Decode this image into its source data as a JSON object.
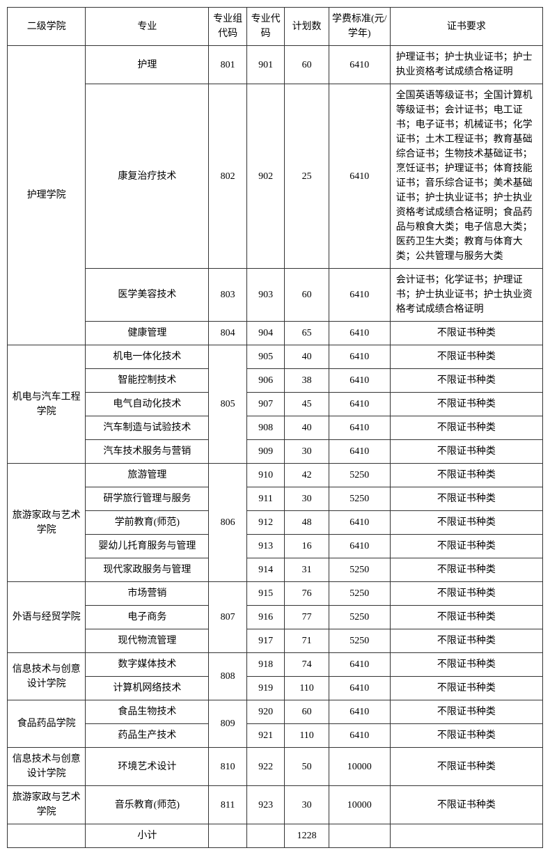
{
  "columns": {
    "college": "二级学院",
    "major": "专业",
    "group_code": "专业组代码",
    "major_code": "专业代码",
    "plan": "计划数",
    "fee": "学费标准(元/学年)",
    "cert": "证书要求"
  },
  "rows": [
    {
      "college": "护理学院",
      "college_rowspan": 4,
      "major": "护理",
      "gcode": "801",
      "mcode": "901",
      "plan": "60",
      "fee": "6410",
      "cert": "护理证书；护士执业证书；护士执业资格考试成绩合格证明",
      "cert_align": "left"
    },
    {
      "major": "康复治疗技术",
      "gcode": "802",
      "mcode": "902",
      "plan": "25",
      "fee": "6410",
      "cert": "全国英语等级证书；全国计算机等级证书；会计证书；电工证书；电子证书；机械证书；化学证书；土木工程证书；教育基础综合证书；生物技术基础证书；烹饪证书；护理证书；体育技能证书；音乐综合证书；美术基础证书；护士执业证书；护士执业资格考试成绩合格证明；食品药品与粮食大类；电子信息大类；医药卫生大类；教育与体育大类；公共管理与服务大类",
      "cert_align": "left"
    },
    {
      "major": "医学美容技术",
      "gcode": "803",
      "mcode": "903",
      "plan": "60",
      "fee": "6410",
      "cert": "会计证书；化学证书；护理证书；护士执业证书；护士执业资格考试成绩合格证明",
      "cert_align": "left"
    },
    {
      "major": "健康管理",
      "gcode": "804",
      "mcode": "904",
      "plan": "65",
      "fee": "6410",
      "cert": "不限证书种类",
      "cert_align": "center"
    },
    {
      "college": "机电与汽车工程学院",
      "college_rowspan": 5,
      "major": "机电一体化技术",
      "gcode": "805",
      "gcode_rowspan": 5,
      "mcode": "905",
      "plan": "40",
      "fee": "6410",
      "cert": "不限证书种类",
      "cert_align": "center"
    },
    {
      "major": "智能控制技术",
      "mcode": "906",
      "plan": "38",
      "fee": "6410",
      "cert": "不限证书种类",
      "cert_align": "center"
    },
    {
      "major": "电气自动化技术",
      "mcode": "907",
      "plan": "45",
      "fee": "6410",
      "cert": "不限证书种类",
      "cert_align": "center"
    },
    {
      "major": "汽车制造与试验技术",
      "mcode": "908",
      "plan": "40",
      "fee": "6410",
      "cert": "不限证书种类",
      "cert_align": "center"
    },
    {
      "major": "汽车技术服务与营销",
      "mcode": "909",
      "plan": "30",
      "fee": "6410",
      "cert": "不限证书种类",
      "cert_align": "center"
    },
    {
      "college": "旅游家政与艺术学院",
      "college_rowspan": 5,
      "major": "旅游管理",
      "gcode": "806",
      "gcode_rowspan": 5,
      "mcode": "910",
      "plan": "42",
      "fee": "5250",
      "cert": "不限证书种类",
      "cert_align": "center"
    },
    {
      "major": "研学旅行管理与服务",
      "mcode": "911",
      "plan": "30",
      "fee": "5250",
      "cert": "不限证书种类",
      "cert_align": "center"
    },
    {
      "major": "学前教育(师范)",
      "mcode": "912",
      "plan": "48",
      "fee": "6410",
      "cert": "不限证书种类",
      "cert_align": "center"
    },
    {
      "major": "婴幼儿托育服务与管理",
      "mcode": "913",
      "plan": "16",
      "fee": "6410",
      "cert": "不限证书种类",
      "cert_align": "center"
    },
    {
      "major": "现代家政服务与管理",
      "mcode": "914",
      "plan": "31",
      "fee": "5250",
      "cert": "不限证书种类",
      "cert_align": "center"
    },
    {
      "college": "外语与经贸学院",
      "college_rowspan": 3,
      "major": "市场营销",
      "gcode": "807",
      "gcode_rowspan": 3,
      "mcode": "915",
      "plan": "76",
      "fee": "5250",
      "cert": "不限证书种类",
      "cert_align": "center"
    },
    {
      "major": "电子商务",
      "mcode": "916",
      "plan": "77",
      "fee": "5250",
      "cert": "不限证书种类",
      "cert_align": "center"
    },
    {
      "major": "现代物流管理",
      "mcode": "917",
      "plan": "71",
      "fee": "5250",
      "cert": "不限证书种类",
      "cert_align": "center"
    },
    {
      "college": "信息技术与创意设计学院",
      "college_rowspan": 2,
      "major": "数字媒体技术",
      "gcode": "808",
      "gcode_rowspan": 2,
      "mcode": "918",
      "plan": "74",
      "fee": "6410",
      "cert": "不限证书种类",
      "cert_align": "center"
    },
    {
      "major": "计算机网络技术",
      "mcode": "919",
      "plan": "110",
      "fee": "6410",
      "cert": "不限证书种类",
      "cert_align": "center"
    },
    {
      "college": "食品药品学院",
      "college_rowspan": 2,
      "major": "食品生物技术",
      "gcode": "809",
      "gcode_rowspan": 2,
      "mcode": "920",
      "plan": "60",
      "fee": "6410",
      "cert": "不限证书种类",
      "cert_align": "center"
    },
    {
      "major": "药品生产技术",
      "mcode": "921",
      "plan": "110",
      "fee": "6410",
      "cert": "不限证书种类",
      "cert_align": "center"
    },
    {
      "college": "信息技术与创意设计学院",
      "college_rowspan": 1,
      "major": "环境艺术设计",
      "gcode": "810",
      "mcode": "922",
      "plan": "50",
      "fee": "10000",
      "cert": "不限证书种类",
      "cert_align": "center"
    },
    {
      "college": "旅游家政与艺术学院",
      "college_rowspan": 1,
      "major": "音乐教育(师范)",
      "gcode": "811",
      "mcode": "923",
      "plan": "30",
      "fee": "10000",
      "cert": "不限证书种类",
      "cert_align": "center"
    }
  ],
  "subtotal": {
    "label": "小计",
    "plan": "1228"
  },
  "border_color": "#333333",
  "background_color": "#ffffff",
  "text_color": "#000000",
  "font_family": "SimSun",
  "font_size_pt": 11
}
